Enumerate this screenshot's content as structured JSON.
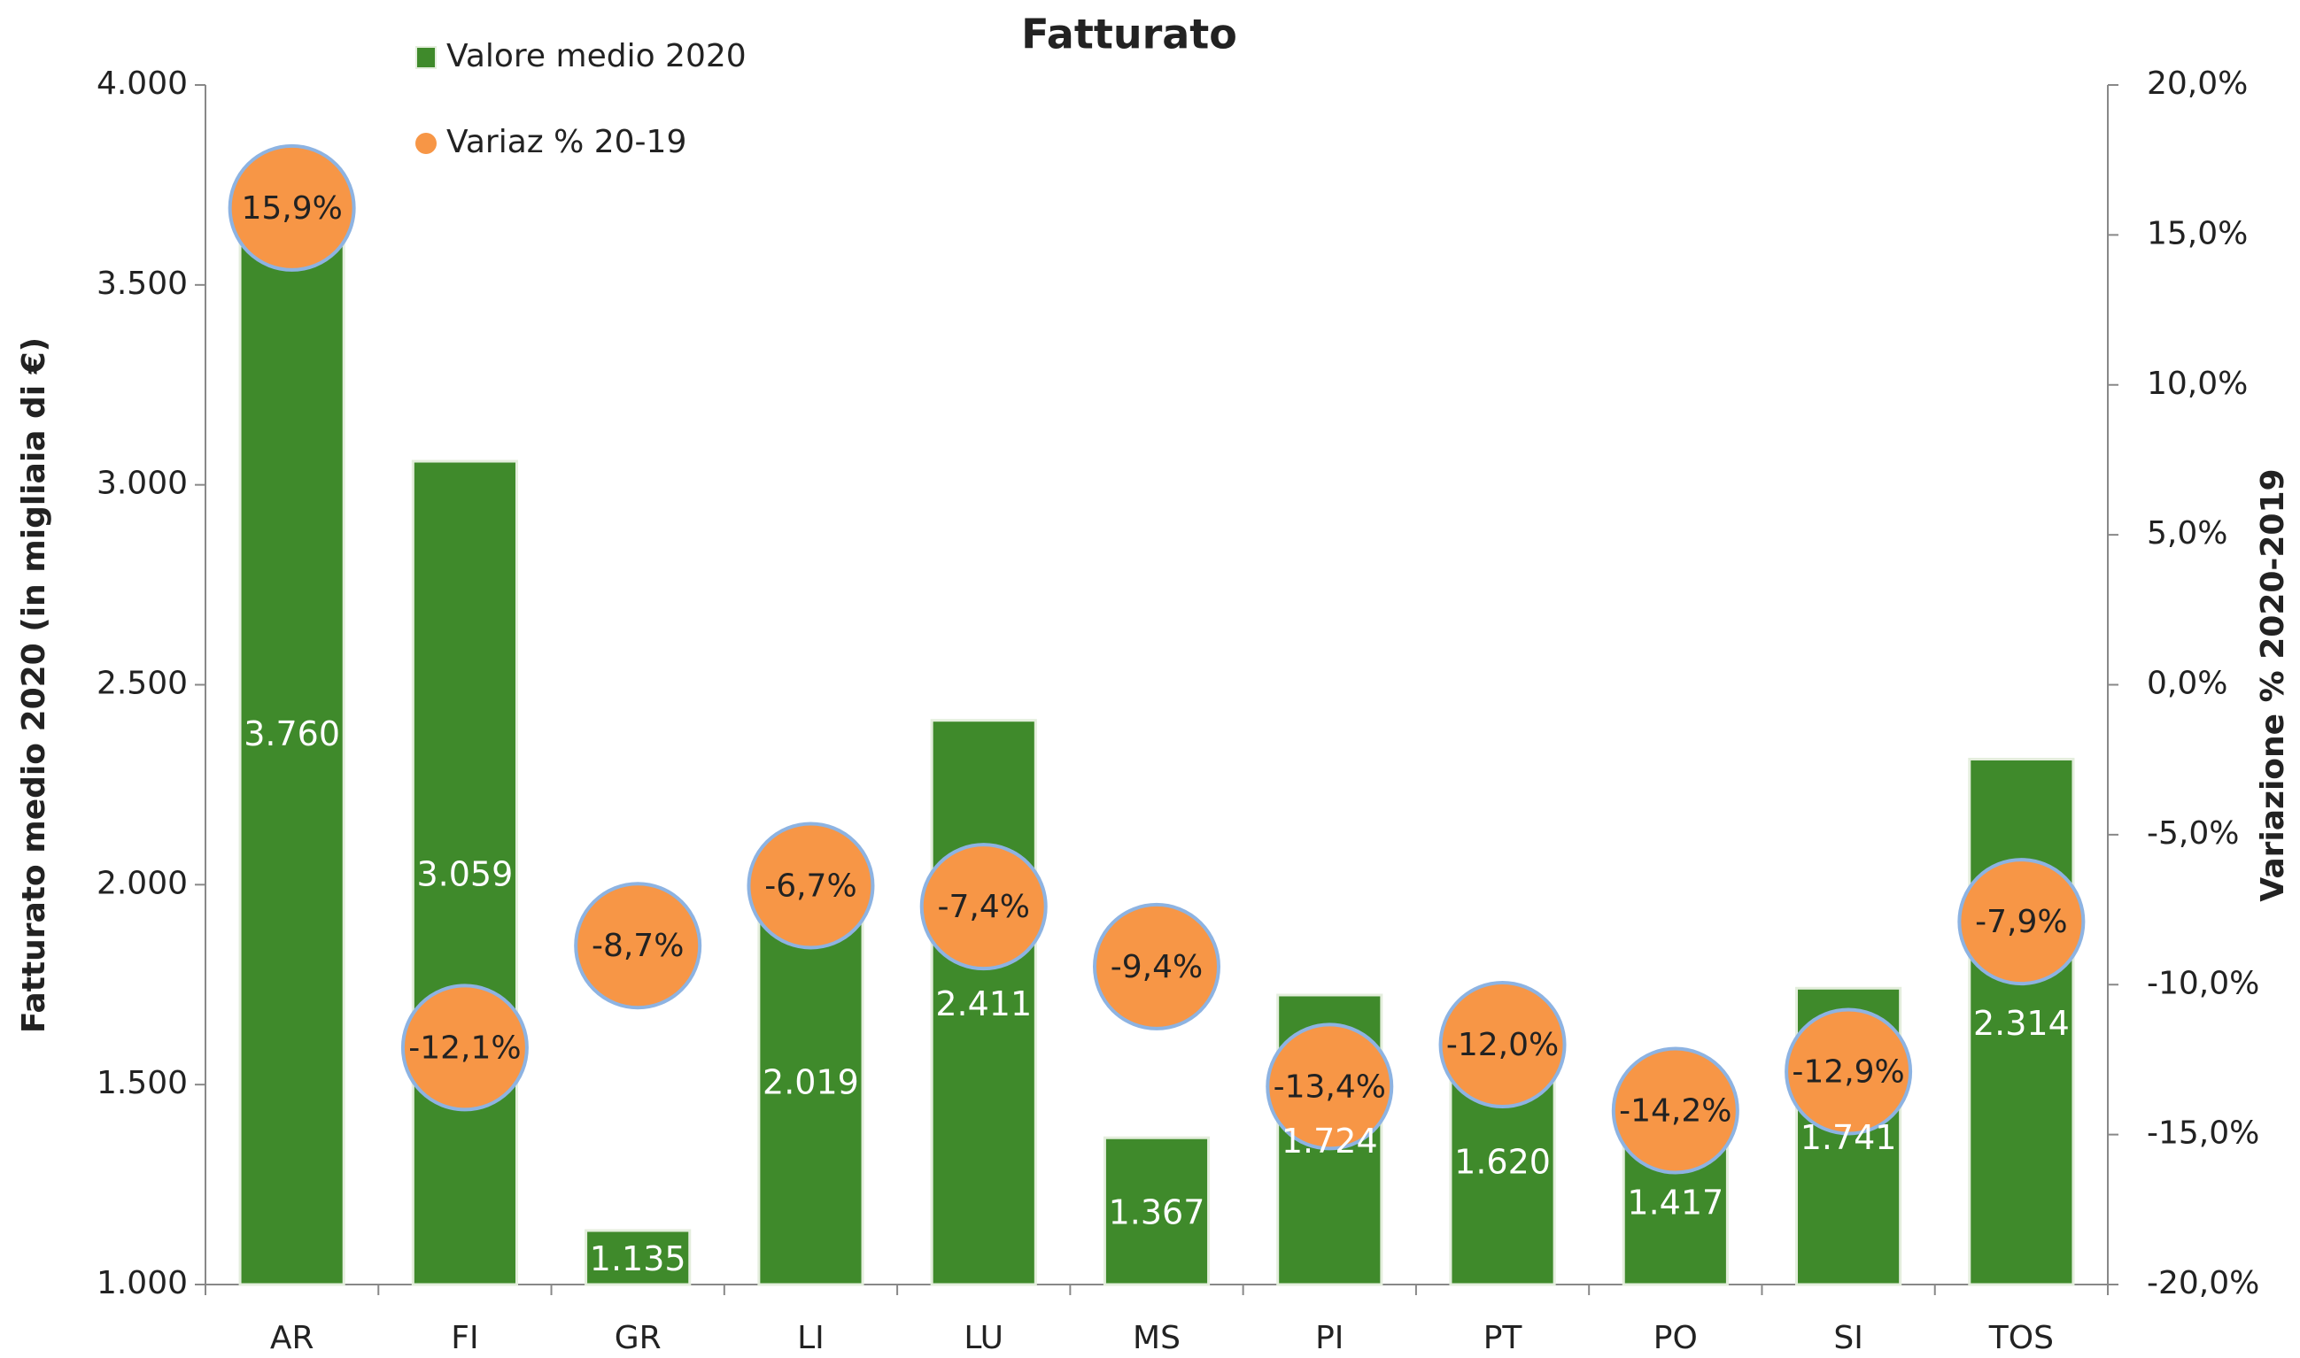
{
  "chart_data": {
    "type": "bar",
    "title": "Fatturato",
    "y_label": "Fatturato medio 2020 (in migliaia di €)",
    "y2_label": "Variazione % 2020-2019",
    "categories": [
      "AR",
      "FI",
      "GR",
      "LI",
      "LU",
      "MS",
      "PI",
      "PT",
      "PO",
      "SI",
      "TOS"
    ],
    "series": [
      {
        "name": "Valore medio  2020",
        "color": "#3f8a2b",
        "values": [
          3760,
          3059,
          1135,
          2019,
          2411,
          1367,
          1724,
          1620,
          1417,
          1741,
          2314
        ],
        "value_labels": [
          "3.760",
          "3.059",
          "1.135",
          "2.019",
          "2.411",
          "1.367",
          "1.724",
          "1.620",
          "1.417",
          "1.741",
          "2.314"
        ]
      },
      {
        "name": "Variaz % 20-19",
        "color": "#f79646",
        "axis": "y2",
        "values": [
          15.9,
          -12.1,
          -8.7,
          -6.7,
          -7.4,
          -9.4,
          -13.4,
          -12.0,
          -14.2,
          -12.9,
          -7.9
        ],
        "value_labels": [
          "15,9%",
          "-12,1%",
          "-8,7%",
          "-6,7%",
          "-7,4%",
          "-9,4%",
          "-13,4%",
          "-12,0%",
          "-14,2%",
          "-12,9%",
          "-7,9%"
        ]
      }
    ],
    "ylim": [
      1000,
      4000
    ],
    "yticks": [
      {
        "value": 1000,
        "label": "1.000"
      },
      {
        "value": 1500,
        "label": "1.500"
      },
      {
        "value": 2000,
        "label": "2.000"
      },
      {
        "value": 2500,
        "label": "2.500"
      },
      {
        "value": 3000,
        "label": "3.000"
      },
      {
        "value": 3500,
        "label": "3.500"
      },
      {
        "value": 4000,
        "label": "4.000"
      }
    ],
    "y2lim": [
      -20,
      20
    ],
    "y2ticks": [
      {
        "value": -20,
        "label": "-20,0%"
      },
      {
        "value": -15,
        "label": "-15,0%"
      },
      {
        "value": -10,
        "label": "-10,0%"
      },
      {
        "value": -5,
        "label": "-5,0%"
      },
      {
        "value": 0,
        "label": "0,0%"
      },
      {
        "value": 5,
        "label": "5,0%"
      },
      {
        "value": 10,
        "label": "10,0%"
      },
      {
        "value": 15,
        "label": "15,0%"
      },
      {
        "value": 20,
        "label": "20,0%"
      }
    ],
    "legend": "top-left",
    "grid": false
  }
}
